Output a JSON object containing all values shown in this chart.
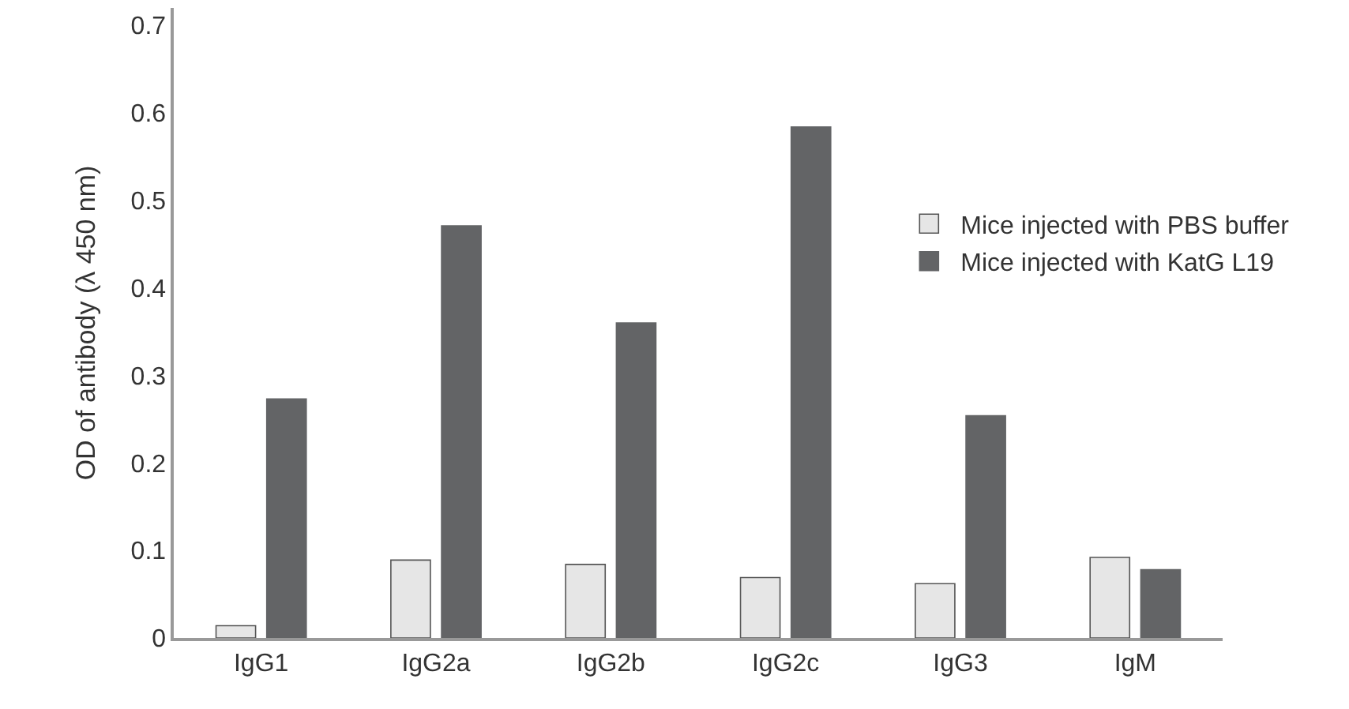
{
  "chart_data": {
    "type": "bar",
    "ylabel": "OD of antibody (λ 450 nm)",
    "categories": [
      "IgG1",
      "IgG2a",
      "IgG2b",
      "IgG2c",
      "IgG3",
      "IgM"
    ],
    "series": [
      {
        "name": "Mice injected with PBS buffer",
        "color": "#e6e6e6",
        "values": [
          0.014,
          0.089,
          0.084,
          0.069,
          0.062,
          0.092
        ]
      },
      {
        "name": "Mice injected with KatG L19",
        "color": "#636466",
        "values": [
          0.273,
          0.471,
          0.36,
          0.584,
          0.254,
          0.078
        ]
      }
    ],
    "ylim": [
      0,
      0.72
    ],
    "yticks": [
      0,
      0.1,
      0.2,
      0.3,
      0.4,
      0.5,
      0.6,
      0.7
    ],
    "grid": false,
    "legend": "right"
  }
}
